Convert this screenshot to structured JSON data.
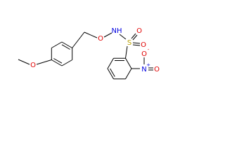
{
  "atoms": [
    {
      "label": "O"
    },
    {
      "label": "O"
    },
    {
      "label": "NH"
    },
    {
      "label": "S"
    },
    {
      "label": "O"
    },
    {
      "label": "O"
    },
    {
      "label": "N",
      "charge": "+"
    },
    {
      "label": "O",
      "charge": "-"
    },
    {
      "label": "O"
    }
  ]
}
